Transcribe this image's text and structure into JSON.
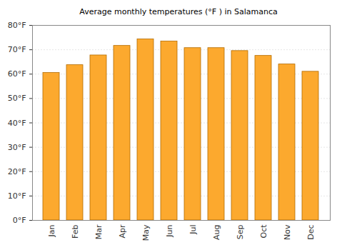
{
  "chart_data": {
    "type": "bar",
    "title": "Average monthly temperatures (°F ) in Salamanca",
    "categories": [
      "Jan",
      "Feb",
      "Mar",
      "Apr",
      "May",
      "Jun",
      "Jul",
      "Aug",
      "Sep",
      "Oct",
      "Nov",
      "Dec"
    ],
    "values": [
      60.5,
      63.7,
      67.7,
      71.6,
      74.3,
      73.4,
      70.7,
      70.7,
      69.5,
      67.5,
      64.0,
      61.0
    ],
    "color": "#fca92e",
    "ylim": [
      0,
      80
    ],
    "yticks": [
      {
        "value": 0,
        "label": "0°F"
      },
      {
        "value": 10,
        "label": "10°F"
      },
      {
        "value": 20,
        "label": "20°F"
      },
      {
        "value": 30,
        "label": "30°F"
      },
      {
        "value": 40,
        "label": "40°F"
      },
      {
        "value": 50,
        "label": "50°F"
      },
      {
        "value": 60,
        "label": "60°F"
      },
      {
        "value": 70,
        "label": "70°F"
      },
      {
        "value": 80,
        "label": "80°F"
      }
    ],
    "grid": true
  }
}
